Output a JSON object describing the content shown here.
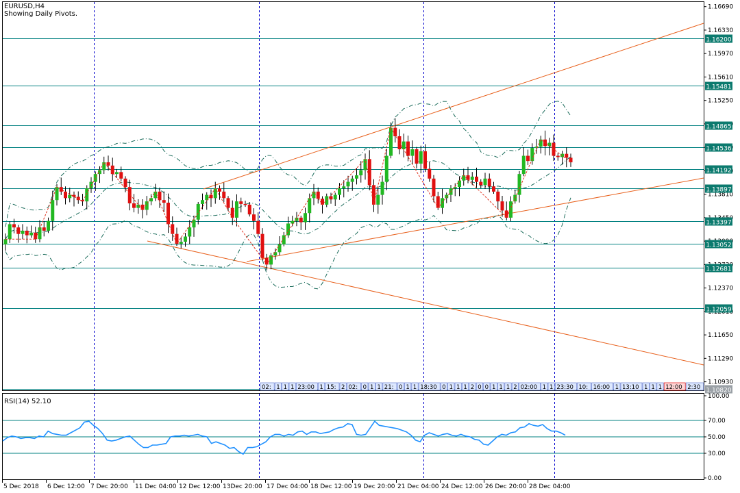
{
  "header": {
    "symbol_timeframe": "EURUSD,H4",
    "indicator_note": "Showing Daily Pivots."
  },
  "rsi": {
    "label": "RSI(14) 52.10",
    "scale_labels": [
      "100.00",
      "70.00",
      "50.00",
      "30.00",
      "0.00"
    ],
    "levels": [
      70,
      50,
      30
    ],
    "series_color": "#1e90ff"
  },
  "colors": {
    "bull_candle": "#22b822",
    "bear_candle": "#e01010",
    "pivot_line": "#008080",
    "pivot_tag_bg": "#0b7a6e",
    "trend_line": "#e8601c",
    "zigzag": "#e0301c",
    "bollinger": "#1a6b5a",
    "period_separator": "#0000cc"
  },
  "chart_data": {
    "type": "candlestick",
    "symbol": "EURUSD",
    "timeframe": "H4",
    "price_axis_labels": [
      "1.16690",
      "1.16330",
      "1.15970",
      "1.15610",
      "1.15250",
      "1.14890",
      "1.14530",
      "1.14170",
      "1.13810",
      "1.13450",
      "1.13090",
      "1.12730",
      "1.12370",
      "1.12010",
      "1.11650",
      "1.11290",
      "1.10930"
    ],
    "pivot_levels": [
      "1.16200",
      "1.15481",
      "1.14865",
      "1.14536",
      "1.14192",
      "1.13897",
      "1.13397",
      "1.13052",
      "1.12681",
      "1.12059",
      "1.10820"
    ],
    "time_axis_labels": [
      "5 Dec 2018",
      "6 Dec 12:00",
      "7 Dec 20:00",
      "11 Dec 04:00",
      "12 Dec 12:00",
      "13Dec 20:00",
      "17 Dec 04:00",
      "18 Dec 12:00",
      "19 Dec 20:00",
      "21 Dec 04:00",
      "24 Dec 12:00",
      "26 Dec 20:00",
      "28 Dec 04:00"
    ],
    "period_separator_labels": [
      "7 Dec 20:00",
      "13Dec 20:00",
      "21 Dec 04:00",
      "28 Dec 04:00"
    ],
    "ylim": [
      1.1081,
      1.1675
    ],
    "candle_closes": [
      1.1312,
      1.1335,
      1.133,
      1.132,
      1.1325,
      1.1318,
      1.1322,
      1.1312,
      1.133,
      1.1325,
      1.134,
      1.1372,
      1.1392,
      1.1385,
      1.1375,
      1.138,
      1.1377,
      1.1372,
      1.137,
      1.139,
      1.14,
      1.1412,
      1.1418,
      1.143,
      1.1425,
      1.1412,
      1.1415,
      1.1405,
      1.1392,
      1.1367,
      1.136,
      1.1365,
      1.1357,
      1.137,
      1.1375,
      1.1385,
      1.1372,
      1.1368,
      1.1335,
      1.132,
      1.1305,
      1.1308,
      1.1316,
      1.133,
      1.1342,
      1.1366,
      1.1372,
      1.138,
      1.1375,
      1.139,
      1.1385,
      1.1375,
      1.136,
      1.1345,
      1.137,
      1.1366,
      1.1365,
      1.135,
      1.134,
      1.132,
      1.1283,
      1.1273,
      1.1287,
      1.1292,
      1.1304,
      1.1318,
      1.1336,
      1.134,
      1.1345,
      1.1338,
      1.1352,
      1.1375,
      1.1385,
      1.1374,
      1.1365,
      1.1378,
      1.1373,
      1.138,
      1.139,
      1.1393,
      1.14,
      1.1405,
      1.141,
      1.1418,
      1.1435,
      1.1395,
      1.1365,
      1.138,
      1.14,
      1.144,
      1.1483,
      1.147,
      1.145,
      1.1462,
      1.144,
      1.145,
      1.1428,
      1.1447,
      1.142,
      1.1405,
      1.1378,
      1.136,
      1.1375,
      1.138,
      1.139,
      1.1392,
      1.1402,
      1.141,
      1.1403,
      1.1408,
      1.14,
      1.1395,
      1.1405,
      1.1393,
      1.1385,
      1.137,
      1.1356,
      1.1345,
      1.137,
      1.138,
      1.1412,
      1.144,
      1.1432,
      1.1452,
      1.1454,
      1.1465,
      1.1455,
      1.146,
      1.144,
      1.1438,
      1.1443,
      1.1437,
      1.143
    ],
    "rsi_values": [
      45,
      49,
      51,
      50,
      48,
      49,
      49,
      48,
      51,
      50,
      57,
      54,
      53,
      52,
      52,
      55,
      58,
      61,
      68,
      69,
      64,
      60,
      54,
      46,
      45,
      46,
      48,
      50,
      51,
      46,
      41,
      37,
      37,
      40,
      40,
      41,
      42,
      50,
      51,
      51,
      52,
      51,
      52,
      53,
      51,
      50,
      42,
      44,
      42,
      40,
      36,
      37,
      32,
      29,
      37,
      37,
      38,
      41,
      44,
      50,
      53,
      53,
      51,
      53,
      52,
      56,
      57,
      53,
      56,
      56,
      54,
      55,
      56,
      59,
      61,
      62,
      66,
      65,
      53,
      52,
      53,
      61,
      69,
      64,
      63,
      62,
      61,
      60,
      58,
      56,
      52,
      46,
      44,
      52,
      55,
      53,
      51,
      53,
      54,
      52,
      51,
      53,
      51,
      50,
      47,
      46,
      41,
      40,
      45,
      50,
      53,
      52,
      55,
      56,
      61,
      62,
      66,
      64,
      63,
      65,
      60,
      57,
      57,
      55,
      52
    ],
    "rsi_ylim": [
      0,
      100
    ]
  }
}
